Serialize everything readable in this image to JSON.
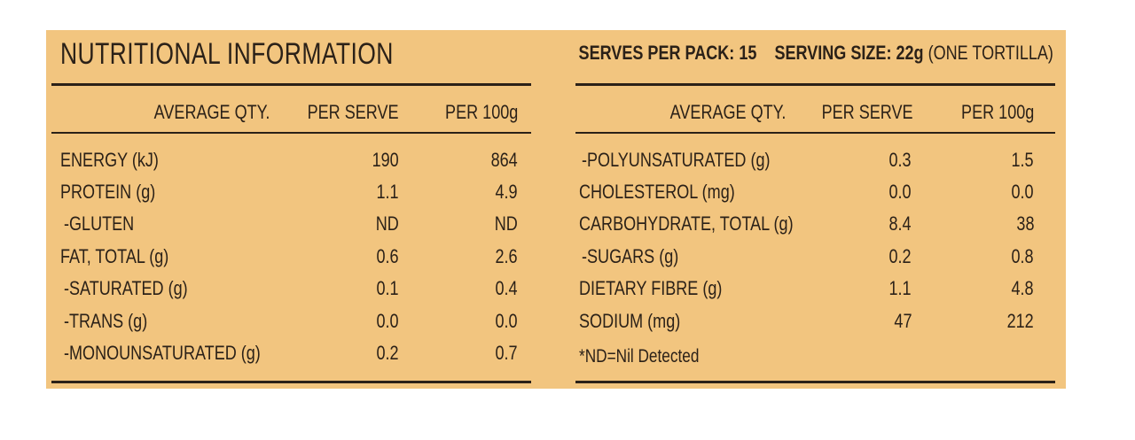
{
  "title": "NUTRITIONAL INFORMATION",
  "serves_label": "SERVES PER PACK:",
  "serves_value": "15",
  "serving_size_label": "SERVING SIZE:",
  "serving_size_value": "22g",
  "serving_size_note": "(ONE TORTILLA)",
  "headers": {
    "avg": "AVERAGE QTY.",
    "per_serve": "PER SERVE",
    "per_100g": "PER 100g"
  },
  "left_rows": [
    {
      "name": "ENERGY (kJ)",
      "serve": "190",
      "per100": "864"
    },
    {
      "name": "PROTEIN (g)",
      "serve": "1.1",
      "per100": "4.9"
    },
    {
      "name": " -GLUTEN",
      "serve": "ND",
      "per100": "ND"
    },
    {
      "name": "FAT, TOTAL (g)",
      "serve": "0.6",
      "per100": "2.6"
    },
    {
      "name": " -SATURATED (g)",
      "serve": "0.1",
      "per100": "0.4"
    },
    {
      "name": " -TRANS (g)",
      "serve": "0.0",
      "per100": "0.0"
    },
    {
      "name": " -MONOUNSATURATED (g)",
      "serve": "0.2",
      "per100": "0.7"
    }
  ],
  "right_rows": [
    {
      "name": " -POLYUNSATURATED (g)",
      "serve": "0.3",
      "per100": "1.5"
    },
    {
      "name": "CHOLESTEROL (mg)",
      "serve": "0.0",
      "per100": "0.0"
    },
    {
      "name": "CARBOHYDRATE, TOTAL (g)",
      "serve": "8.4",
      "per100": "38"
    },
    {
      "name": " -SUGARS (g)",
      "serve": "0.2",
      "per100": "0.8"
    },
    {
      "name": "DIETARY FIBRE (g)",
      "serve": "1.1",
      "per100": "4.8"
    },
    {
      "name": "SODIUM (mg)",
      "serve": "47",
      "per100": "212"
    }
  ],
  "footnote": "*ND=Nil Detected",
  "colors": {
    "panel": "#f2c57f",
    "ink": "#2b2118"
  }
}
